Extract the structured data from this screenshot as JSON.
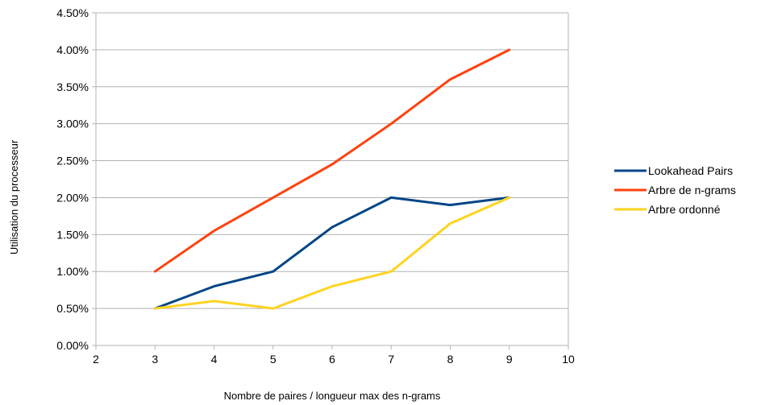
{
  "chart_data": {
    "type": "line",
    "title": "",
    "xlabel": "Nombre de paires / longueur max des n-grams",
    "ylabel": "Utilisation du processeur",
    "xlim": [
      2,
      10
    ],
    "ylim": [
      0,
      0.045
    ],
    "x_ticks": [
      "2",
      "3",
      "4",
      "5",
      "6",
      "7",
      "8",
      "9",
      "10"
    ],
    "y_ticks": [
      "0.00%",
      "0.50%",
      "1.00%",
      "1.50%",
      "2.00%",
      "2.50%",
      "3.00%",
      "3.50%",
      "4.00%",
      "4.50%"
    ],
    "grid": "horizontal",
    "legend_position": "right",
    "x": [
      3,
      4,
      5,
      6,
      7,
      8,
      9
    ],
    "series": [
      {
        "name": "Lookahead Pairs",
        "color": "#004586",
        "values": [
          0.005,
          0.008,
          0.01,
          0.016,
          0.02,
          0.019,
          0.02
        ]
      },
      {
        "name": "Arbre de n-grams",
        "color": "#ff420e",
        "values": [
          0.01,
          0.0155,
          0.02,
          0.0245,
          0.03,
          0.036,
          0.04
        ]
      },
      {
        "name": "Arbre ordonné",
        "color": "#ffd320",
        "values": [
          0.005,
          0.006,
          0.005,
          0.008,
          0.01,
          0.0165,
          0.02
        ]
      }
    ]
  }
}
